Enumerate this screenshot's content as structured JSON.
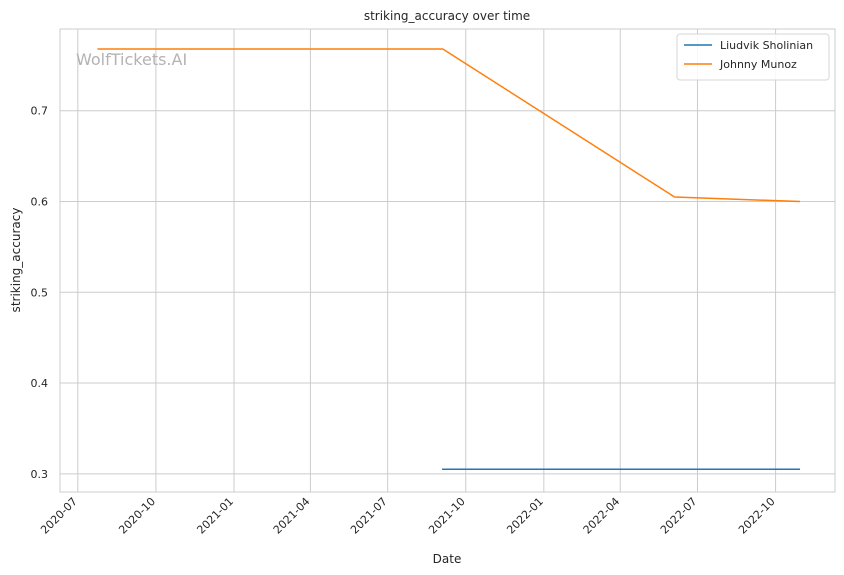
{
  "watermark": "WolfTickets.AI",
  "chart_data": {
    "type": "line",
    "title": "striking_accuracy over time",
    "xlabel": "Date",
    "ylabel": "striking_accuracy",
    "x_type": "date",
    "xlim": [
      "2020-06-10",
      "2022-12-10"
    ],
    "ylim": [
      0.28,
      0.79
    ],
    "xticks": [
      "2020-07-01",
      "2020-10-01",
      "2021-01-01",
      "2021-04-01",
      "2021-07-01",
      "2021-10-01",
      "2022-01-01",
      "2022-04-01",
      "2022-07-01",
      "2022-10-01"
    ],
    "xtick_labels": [
      "2020-07",
      "2020-10",
      "2021-01",
      "2021-04",
      "2021-07",
      "2021-10",
      "2022-01",
      "2022-04",
      "2022-07",
      "2022-10"
    ],
    "yticks": [
      0.3,
      0.4,
      0.5,
      0.6,
      0.7
    ],
    "ytick_labels": [
      "0.3",
      "0.4",
      "0.5",
      "0.6",
      "0.7"
    ],
    "grid": true,
    "legend_position": "top-right",
    "series": [
      {
        "name": "Liudvik Sholinian",
        "color": "#1f77b4",
        "points": [
          {
            "x": "2021-09-04",
            "y": 0.305
          },
          {
            "x": "2022-10-29",
            "y": 0.305
          }
        ]
      },
      {
        "name": "Johnny Munoz",
        "color": "#ff7f0e",
        "points": [
          {
            "x": "2020-07-25",
            "y": 0.768
          },
          {
            "x": "2021-09-04",
            "y": 0.768
          },
          {
            "x": "2022-06-04",
            "y": 0.605
          },
          {
            "x": "2022-10-29",
            "y": 0.6
          }
        ]
      }
    ]
  }
}
